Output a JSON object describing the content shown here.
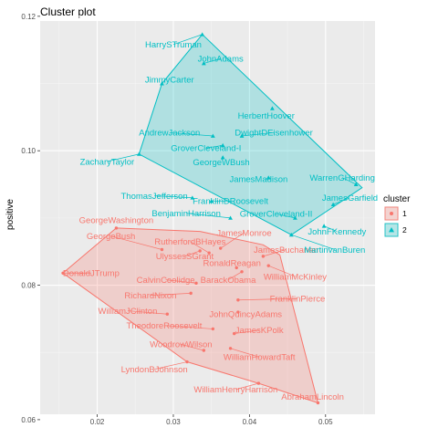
{
  "chart_data": {
    "type": "scatter",
    "title": "Cluster plot",
    "xlabel": "",
    "ylabel": "positive",
    "xlim": [
      0.0125,
      0.0565
    ],
    "ylim": [
      0.0608,
      0.1193
    ],
    "xticks": [
      0.02,
      0.03,
      0.04,
      0.05
    ],
    "yticks": [
      0.06,
      0.08,
      0.1,
      0.12
    ],
    "xtick_labels": [
      "0.02",
      "0.03",
      "0.04",
      "0.05"
    ],
    "ytick_labels": [
      "0.06",
      "0.08",
      "0.10",
      "0.12"
    ],
    "grid": true,
    "panel_background": "#ebebeb",
    "legend": {
      "title": "cluster",
      "position": "right",
      "entries": [
        {
          "label": "1",
          "color": "#f8766d"
        },
        {
          "label": "2",
          "color": "#00bfc4"
        }
      ]
    },
    "series": [
      {
        "cluster": "1",
        "color": "#f8766d",
        "fill": "#f8766d",
        "shape": "circle",
        "points": [
          {
            "label": "GeorgeWashington",
            "x": 0.0225,
            "y": 0.0885,
            "lx": 0.0225,
            "ly": 0.0897
          },
          {
            "label": "GeorgeBush",
            "x": 0.0285,
            "y": 0.0853,
            "lx": 0.0218,
            "ly": 0.0873
          },
          {
            "label": "RutherfordBHayes",
            "x": 0.0347,
            "y": 0.0848,
            "lx": 0.0322,
            "ly": 0.0865
          },
          {
            "label": "UlyssesSGrant",
            "x": 0.0335,
            "y": 0.0851,
            "lx": 0.0315,
            "ly": 0.0843
          },
          {
            "label": "JamesMonroe",
            "x": 0.0362,
            "y": 0.0855,
            "lx": 0.0393,
            "ly": 0.0878
          },
          {
            "label": "DonaldJTrump",
            "x": 0.0155,
            "y": 0.0818,
            "lx": 0.0192,
            "ly": 0.0818
          },
          {
            "label": "CalvinCoolidge",
            "x": 0.033,
            "y": 0.0803,
            "lx": 0.029,
            "ly": 0.0808
          },
          {
            "label": "RonaldReagan",
            "x": 0.0383,
            "y": 0.0826,
            "lx": 0.0377,
            "ly": 0.0833
          },
          {
            "label": "JamesBuchanan",
            "x": 0.0418,
            "y": 0.0843,
            "lx": 0.0448,
            "ly": 0.0853
          },
          {
            "label": "BarackObama",
            "x": 0.039,
            "y": 0.082,
            "lx": 0.0372,
            "ly": 0.0808
          },
          {
            "label": "WilliamMcKinley",
            "x": 0.0425,
            "y": 0.0829,
            "lx": 0.046,
            "ly": 0.0813
          },
          {
            "label": "RichardNixon",
            "x": 0.0323,
            "y": 0.0788,
            "lx": 0.027,
            "ly": 0.0785
          },
          {
            "label": "FranklinPierce",
            "x": 0.0385,
            "y": 0.0778,
            "lx": 0.0463,
            "ly": 0.078
          },
          {
            "label": "WilliamJClinton",
            "x": 0.0292,
            "y": 0.0757,
            "lx": 0.024,
            "ly": 0.0762
          },
          {
            "label": "JohnQuincyAdams",
            "x": 0.0385,
            "y": 0.076,
            "lx": 0.0395,
            "ly": 0.0757
          },
          {
            "label": "TheodoreRoosevelt",
            "x": 0.0352,
            "y": 0.0735,
            "lx": 0.0288,
            "ly": 0.074
          },
          {
            "label": "JamesKPolk",
            "x": 0.038,
            "y": 0.0728,
            "lx": 0.0413,
            "ly": 0.0733
          },
          {
            "label": "WoodrowWilson",
            "x": 0.034,
            "y": 0.0703,
            "lx": 0.031,
            "ly": 0.0712
          },
          {
            "label": "WilliamHowardTaft",
            "x": 0.0375,
            "y": 0.0706,
            "lx": 0.0413,
            "ly": 0.0693
          },
          {
            "label": "LyndonBJohnson",
            "x": 0.0318,
            "y": 0.0686,
            "lx": 0.0275,
            "ly": 0.0675
          },
          {
            "label": "WilliamHenryHarrison",
            "x": 0.0412,
            "y": 0.0654,
            "lx": 0.0382,
            "ly": 0.0645
          },
          {
            "label": "AbrahamLincoln",
            "x": 0.049,
            "y": 0.0625,
            "lx": 0.0483,
            "ly": 0.0634
          }
        ],
        "hull": [
          [
            0.0155,
            0.0818
          ],
          [
            0.0225,
            0.0885
          ],
          [
            0.0335,
            0.088
          ],
          [
            0.0418,
            0.086
          ],
          [
            0.044,
            0.0845
          ],
          [
            0.049,
            0.0625
          ],
          [
            0.0412,
            0.0654
          ],
          [
            0.0318,
            0.0686
          ]
        ]
      },
      {
        "cluster": "2",
        "color": "#00bfc4",
        "fill": "#00bfc4",
        "shape": "triangle",
        "points": [
          {
            "label": "HarrySTruman",
            "x": 0.0338,
            "y": 0.1173,
            "lx": 0.03,
            "ly": 0.1158
          },
          {
            "label": "JohnAdams",
            "x": 0.034,
            "y": 0.113,
            "lx": 0.0362,
            "ly": 0.1137
          },
          {
            "label": "JimmyCarter",
            "x": 0.0285,
            "y": 0.11,
            "lx": 0.0295,
            "ly": 0.1106
          },
          {
            "label": "HerbertHoover",
            "x": 0.043,
            "y": 0.1063,
            "lx": 0.0422,
            "ly": 0.1052
          },
          {
            "label": "AndrewJackson",
            "x": 0.0352,
            "y": 0.1022,
            "lx": 0.0295,
            "ly": 0.1027
          },
          {
            "label": "DwightDEisenhower",
            "x": 0.039,
            "y": 0.1022,
            "lx": 0.0432,
            "ly": 0.1027
          },
          {
            "label": "GroverCleveland-I",
            "x": 0.0365,
            "y": 0.1008,
            "lx": 0.0343,
            "ly": 0.1004
          },
          {
            "label": "ZacharyTaylor",
            "x": 0.0255,
            "y": 0.0995,
            "lx": 0.0213,
            "ly": 0.0984
          },
          {
            "label": "GeorgeWBush",
            "x": 0.0365,
            "y": 0.099,
            "lx": 0.0363,
            "ly": 0.0983
          },
          {
            "label": "WarrenGHarding",
            "x": 0.054,
            "y": 0.095,
            "lx": 0.0522,
            "ly": 0.096
          },
          {
            "label": "JamesMadison",
            "x": 0.0425,
            "y": 0.096,
            "lx": 0.0412,
            "ly": 0.0958
          },
          {
            "label": "JamesGarfield",
            "x": 0.051,
            "y": 0.092,
            "lx": 0.0532,
            "ly": 0.093
          },
          {
            "label": "ThomasJefferson",
            "x": 0.0325,
            "y": 0.093,
            "lx": 0.0275,
            "ly": 0.0933
          },
          {
            "label": "FranklinDRoosevelt",
            "x": 0.035,
            "y": 0.0925,
            "lx": 0.0375,
            "ly": 0.0925
          },
          {
            "label": "BenjaminHarrison",
            "x": 0.0375,
            "y": 0.09,
            "lx": 0.0317,
            "ly": 0.0907
          },
          {
            "label": "GroverCleveland-II",
            "x": 0.046,
            "y": 0.09,
            "lx": 0.0435,
            "ly": 0.0906
          },
          {
            "label": "JohnFKennedy",
            "x": 0.0498,
            "y": 0.0888,
            "lx": 0.0515,
            "ly": 0.088
          },
          {
            "label": "MartinvanBuren",
            "x": 0.0455,
            "y": 0.0875,
            "lx": 0.0512,
            "ly": 0.0853
          }
        ],
        "hull": [
          [
            0.0338,
            0.1173
          ],
          [
            0.0548,
            0.0945
          ],
          [
            0.0455,
            0.0875
          ],
          [
            0.0255,
            0.0995
          ],
          [
            0.0285,
            0.11
          ]
        ]
      }
    ]
  }
}
